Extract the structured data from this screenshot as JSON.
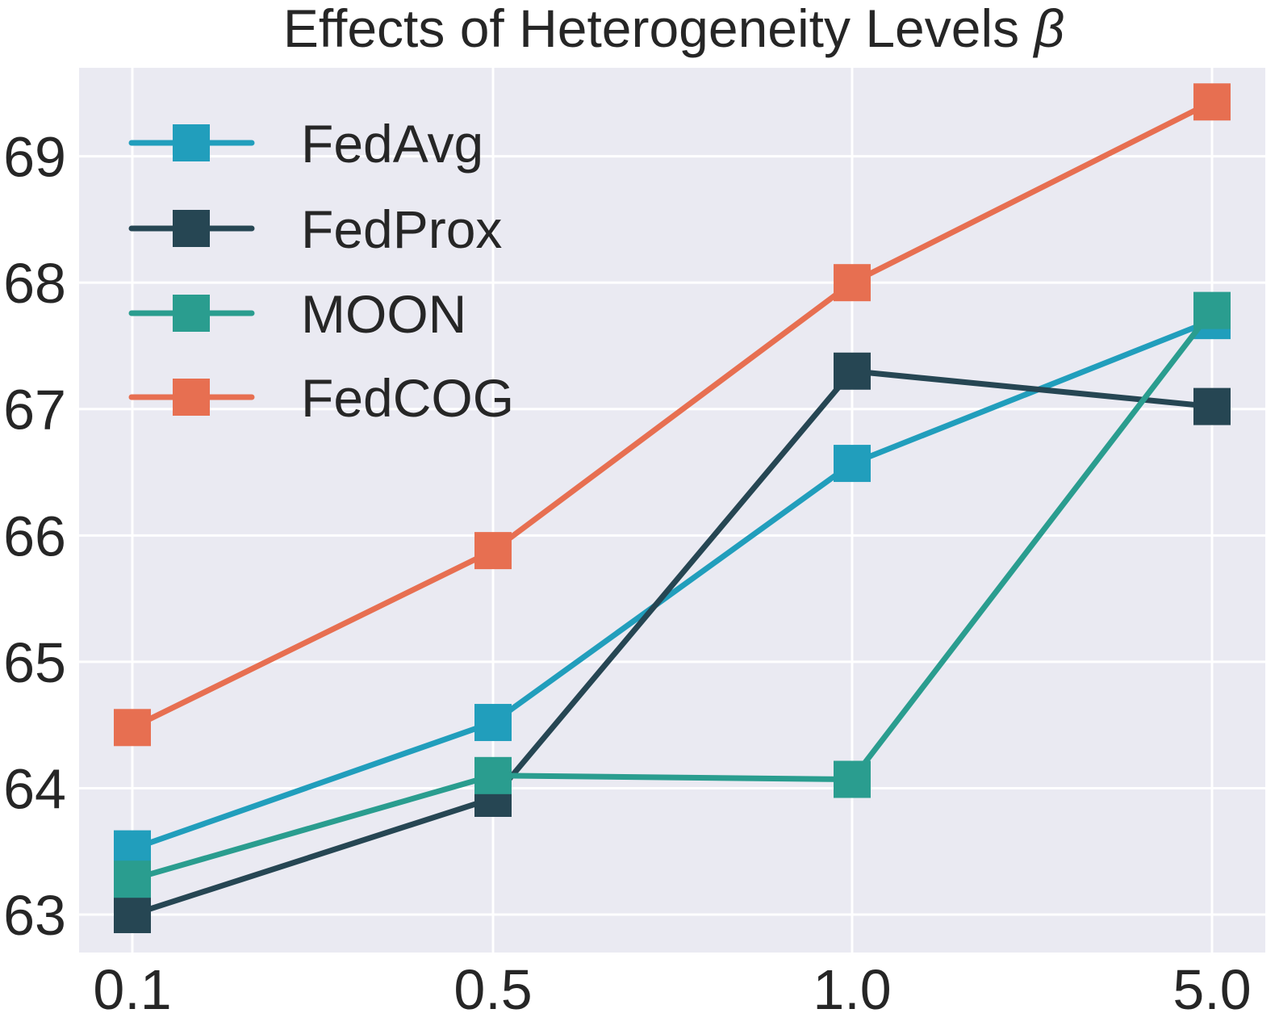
{
  "chart_data": {
    "type": "line",
    "title": "Effects of Heterogeneity Levels",
    "title_symbol": "β",
    "xlabel": "",
    "ylabel": "",
    "categories": [
      "0.1",
      "0.5",
      "1.0",
      "5.0"
    ],
    "ylim": [
      62.7,
      69.7
    ],
    "yticks": [
      63,
      64,
      65,
      66,
      67,
      68,
      69
    ],
    "grid": true,
    "legend_position": "top-left",
    "series": [
      {
        "name": "FedAvg",
        "color": "#219ebc",
        "values": [
          63.52,
          64.52,
          66.57,
          67.7
        ]
      },
      {
        "name": "FedProx",
        "color": "#264653",
        "values": [
          63.0,
          63.92,
          67.3,
          67.02
        ]
      },
      {
        "name": "MOON",
        "color": "#2a9d8f",
        "values": [
          63.28,
          64.1,
          64.07,
          67.78
        ]
      },
      {
        "name": "FedCOG",
        "color": "#e76f51",
        "values": [
          64.48,
          65.88,
          68.0,
          69.43
        ]
      }
    ]
  }
}
